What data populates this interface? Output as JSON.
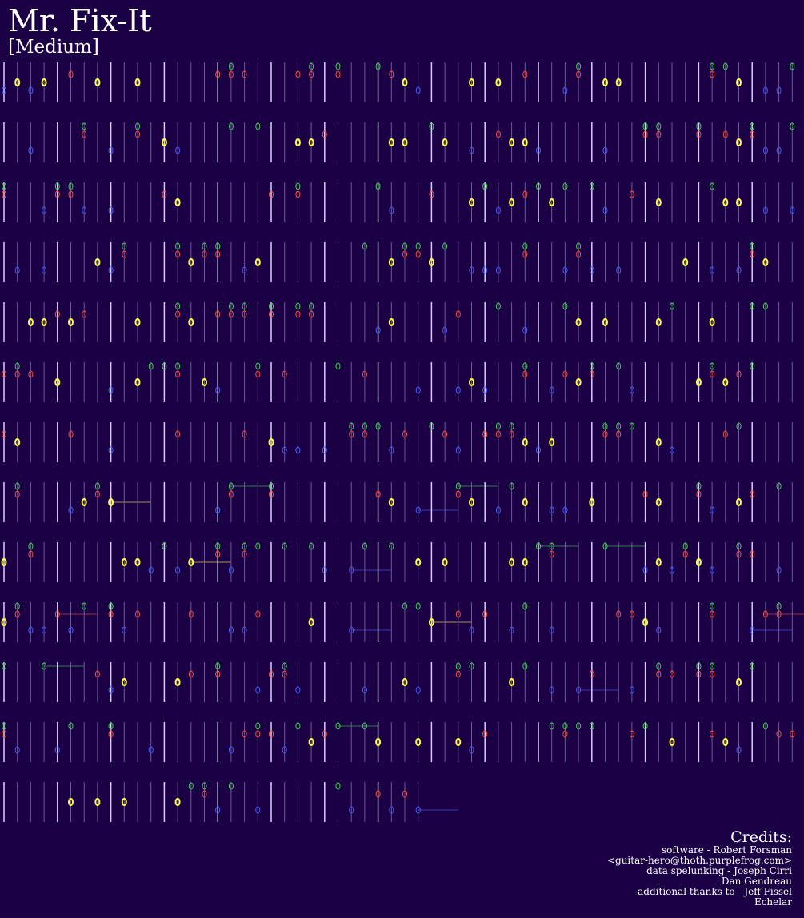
{
  "header": {
    "title": "Mr. Fix-It",
    "difficulty": "[Medium]"
  },
  "credits": {
    "heading": "Credits:",
    "lines": [
      "software - Robert Forsman",
      "<guitar-hero@thoth.purplefrog.com>",
      "data spelunking - Joseph Cirri",
      "Dan Gendreau",
      "additional thanks to - Jeff Fissel",
      "Echelar"
    ]
  }
}
